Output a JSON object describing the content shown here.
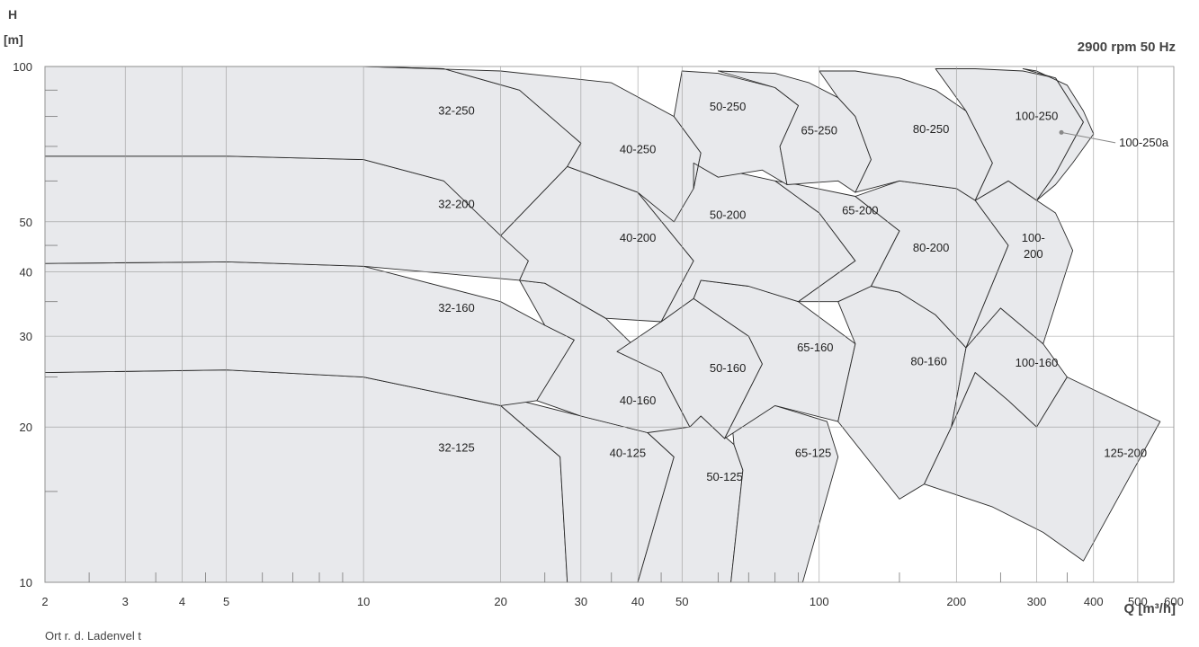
{
  "header": {
    "y_label": "H",
    "y_unit": "[m]",
    "speed": "2900 rpm 50 Hz",
    "x_label": "Q [m³/h]"
  },
  "footnote": "Ort r. d. Ladenvel t",
  "chart_data": {
    "type": "area",
    "x_scale": "log",
    "y_scale": "log",
    "xlim": [
      2,
      600
    ],
    "ylim": [
      10,
      100
    ],
    "xlabel": "Q [m³/h]",
    "ylabel": "H [m]",
    "grid": true,
    "x_ticks": [
      2,
      3,
      4,
      5,
      10,
      20,
      30,
      40,
      50,
      100,
      200,
      300,
      400,
      500,
      600
    ],
    "y_ticks": [
      10,
      20,
      30,
      40,
      50,
      100
    ],
    "fill_color": "#e8e9ec",
    "line_color": "#2a2a2a",
    "grid_color": "#9a9a9a",
    "series": [
      {
        "name": "32-125",
        "label_at": [
          16,
          18.2
        ],
        "polygon": [
          [
            2,
            25.5
          ],
          [
            5,
            25.8
          ],
          [
            10,
            25.0
          ],
          [
            20,
            22.0
          ],
          [
            27,
            17.5
          ],
          [
            28,
            10
          ],
          [
            2,
            10
          ]
        ]
      },
      {
        "name": "40-125",
        "label_at": [
          38,
          17.8
        ],
        "polygon": [
          [
            10,
            25.0
          ],
          [
            20,
            23.0
          ],
          [
            30,
            21.0
          ],
          [
            42,
            19.5
          ],
          [
            48,
            17.5
          ],
          [
            40,
            10
          ],
          [
            28,
            10
          ],
          [
            27,
            17.5
          ],
          [
            20,
            22.0
          ]
        ]
      },
      {
        "name": "50-125",
        "label_at": [
          62,
          16.0
        ],
        "polygon": [
          [
            48,
            17.5
          ],
          [
            42,
            19.5
          ],
          [
            48,
            21.5
          ],
          [
            55,
            21.0
          ],
          [
            65,
            18.5
          ],
          [
            68,
            16.5
          ],
          [
            64,
            10
          ],
          [
            40,
            10
          ]
        ]
      },
      {
        "name": "65-125",
        "label_at": [
          97,
          17.8
        ],
        "polygon": [
          [
            65,
            18.5
          ],
          [
            68,
            16.5
          ],
          [
            64,
            10
          ],
          [
            92,
            10
          ],
          [
            110,
            17.5
          ],
          [
            104,
            20.5
          ],
          [
            80,
            22.0
          ],
          [
            64,
            21.5
          ]
        ]
      },
      {
        "name": "32-160",
        "label_at": [
          16,
          34
        ],
        "polygon": [
          [
            2,
            41.5
          ],
          [
            5,
            41.8
          ],
          [
            10,
            41.0
          ],
          [
            20,
            35.0
          ],
          [
            25,
            31.5
          ],
          [
            29,
            29.5
          ],
          [
            24,
            22.5
          ],
          [
            20,
            22.0
          ],
          [
            10,
            25.0
          ],
          [
            5,
            25.8
          ],
          [
            2,
            25.5
          ]
        ]
      },
      {
        "name": "40-160",
        "label_at": [
          40,
          22.5
        ],
        "polygon": [
          [
            29,
            29.5
          ],
          [
            24,
            22.5
          ],
          [
            30,
            21.0
          ],
          [
            42,
            19.5
          ],
          [
            52,
            20.0
          ],
          [
            45,
            25.5
          ],
          [
            34,
            32.5
          ],
          [
            25,
            38.0
          ],
          [
            22,
            38.5
          ],
          [
            25,
            31.5
          ]
        ]
      },
      {
        "name": "50-160",
        "label_at": [
          63,
          26.0
        ],
        "polygon": [
          [
            45,
            25.5
          ],
          [
            52,
            20.0
          ],
          [
            55,
            21.0
          ],
          [
            62,
            19.0
          ],
          [
            75,
            26.5
          ],
          [
            70,
            30.0
          ],
          [
            53,
            35.5
          ],
          [
            45,
            32.0
          ],
          [
            36,
            28.0
          ]
        ]
      },
      {
        "name": "65-160",
        "label_at": [
          98,
          28.5
        ],
        "polygon": [
          [
            62,
            19.0
          ],
          [
            75,
            26.5
          ],
          [
            70,
            30.0
          ],
          [
            53,
            35.5
          ],
          [
            55,
            38.5
          ],
          [
            70,
            37.5
          ],
          [
            90,
            35.0
          ],
          [
            120,
            29.0
          ],
          [
            110,
            20.5
          ],
          [
            80,
            22.0
          ]
        ]
      },
      {
        "name": "80-160",
        "label_at": [
          174,
          26.8
        ],
        "polygon": [
          [
            120,
            29.0
          ],
          [
            110,
            20.5
          ],
          [
            150,
            14.5
          ],
          [
            170,
            15.5
          ],
          [
            195,
            20.0
          ],
          [
            210,
            28.5
          ],
          [
            180,
            33.0
          ],
          [
            150,
            36.5
          ],
          [
            130,
            37.5
          ],
          [
            110,
            35.0
          ]
        ]
      },
      {
        "name": "100-160",
        "label_at": [
          300,
          26.6
        ],
        "polygon": [
          [
            210,
            28.5
          ],
          [
            195,
            20.0
          ],
          [
            220,
            25.5
          ],
          [
            260,
            22.5
          ],
          [
            300,
            20.0
          ],
          [
            350,
            25.0
          ],
          [
            310,
            29.0
          ],
          [
            250,
            34.0
          ],
          [
            220,
            36.0
          ]
        ]
      },
      {
        "name": "125-200",
        "label_at": [
          470,
          17.8
        ],
        "polygon": [
          [
            195,
            20.0
          ],
          [
            170,
            15.5
          ],
          [
            240,
            14.0
          ],
          [
            310,
            12.5
          ],
          [
            380,
            11.0
          ],
          [
            560,
            20.5
          ],
          [
            350,
            25.0
          ],
          [
            300,
            20.0
          ],
          [
            260,
            22.5
          ],
          [
            220,
            25.5
          ]
        ]
      },
      {
        "name": "32-200",
        "label_at": [
          16,
          54
        ],
        "polygon": [
          [
            2,
            67
          ],
          [
            5,
            67
          ],
          [
            10,
            66
          ],
          [
            15,
            60
          ],
          [
            20,
            50
          ],
          [
            23,
            42
          ],
          [
            22,
            38.5
          ],
          [
            10,
            41.0
          ],
          [
            5,
            41.8
          ],
          [
            2,
            41.5
          ]
        ]
      },
      {
        "name": "40-200",
        "label_at": [
          40,
          46.5
        ],
        "polygon": [
          [
            23,
            42
          ],
          [
            20,
            47
          ],
          [
            28,
            64
          ],
          [
            40,
            57
          ],
          [
            53,
            42
          ],
          [
            45,
            32.0
          ],
          [
            34,
            32.5
          ],
          [
            25,
            38.0
          ],
          [
            22,
            38.5
          ]
        ]
      },
      {
        "name": "50-200",
        "label_at": [
          63,
          51.5
        ],
        "polygon": [
          [
            53,
            42
          ],
          [
            45,
            32.0
          ],
          [
            53,
            35.5
          ],
          [
            55,
            38.5
          ],
          [
            70,
            37.5
          ],
          [
            90,
            35.0
          ],
          [
            120,
            42.0
          ],
          [
            100,
            52.0
          ],
          [
            80,
            60.0
          ],
          [
            53,
            65.0
          ],
          [
            45,
            57.0
          ],
          [
            40,
            57.0
          ]
        ]
      },
      {
        "name": "65-200",
        "label_at": [
          123,
          52.5
        ],
        "polygon": [
          [
            120,
            42.0
          ],
          [
            90,
            35.0
          ],
          [
            110,
            35.0
          ],
          [
            130,
            37.5
          ],
          [
            150,
            48.0
          ],
          [
            120,
            56.0
          ],
          [
            90,
            59.0
          ],
          [
            80,
            60.0
          ],
          [
            100,
            52.0
          ]
        ]
      },
      {
        "name": "80-200",
        "label_at": [
          176,
          44.5
        ],
        "polygon": [
          [
            150,
            48.0
          ],
          [
            130,
            37.5
          ],
          [
            150,
            36.5
          ],
          [
            180,
            33.0
          ],
          [
            210,
            28.5
          ],
          [
            260,
            45.0
          ],
          [
            220,
            55.0
          ],
          [
            200,
            58.0
          ],
          [
            150,
            60.0
          ],
          [
            120,
            56.0
          ]
        ]
      },
      {
        "name": "100-200",
        "label_at": [
          295,
          45.0
        ],
        "polygon": [
          [
            260,
            45.0
          ],
          [
            210,
            28.5
          ],
          [
            250,
            34.0
          ],
          [
            310,
            29.0
          ],
          [
            360,
            44.0
          ],
          [
            330,
            52.0
          ],
          [
            300,
            55.0
          ],
          [
            260,
            60.0
          ],
          [
            220,
            55.0
          ]
        ]
      },
      {
        "name": "32-250",
        "label_at": [
          16,
          82
        ],
        "polygon": [
          [
            2,
            100
          ],
          [
            10,
            100
          ],
          [
            15,
            99
          ],
          [
            22,
            90
          ],
          [
            27,
            77
          ],
          [
            30,
            71
          ],
          [
            28,
            64
          ],
          [
            20,
            47
          ],
          [
            15,
            60
          ],
          [
            10,
            66
          ],
          [
            5,
            67
          ],
          [
            2,
            67
          ]
        ]
      },
      {
        "name": "40-250",
        "label_at": [
          40,
          69
        ],
        "polygon": [
          [
            30,
            71
          ],
          [
            28,
            64
          ],
          [
            40,
            57
          ],
          [
            48,
            50
          ],
          [
            53,
            58
          ],
          [
            55,
            68
          ],
          [
            48,
            80
          ],
          [
            35,
            93
          ],
          [
            20,
            98
          ],
          [
            10,
            100
          ],
          [
            15,
            99
          ],
          [
            22,
            90
          ]
        ]
      },
      {
        "name": "50-250",
        "label_at": [
          63,
          83.5
        ],
        "polygon": [
          [
            55,
            68
          ],
          [
            53,
            58
          ],
          [
            53,
            65
          ],
          [
            60,
            61
          ],
          [
            75,
            63
          ],
          [
            85,
            59
          ],
          [
            82,
            70
          ],
          [
            90,
            84
          ],
          [
            80,
            91
          ],
          [
            60,
            97
          ],
          [
            50,
            98
          ],
          [
            48,
            80
          ]
        ]
      },
      {
        "name": "65-250",
        "label_at": [
          100,
          75
        ],
        "polygon": [
          [
            90,
            84
          ],
          [
            82,
            70
          ],
          [
            85,
            59
          ],
          [
            110,
            60
          ],
          [
            120,
            57
          ],
          [
            130,
            66
          ],
          [
            120,
            80
          ],
          [
            110,
            87
          ],
          [
            95,
            93
          ],
          [
            80,
            97
          ],
          [
            60,
            98
          ],
          [
            80,
            91
          ]
        ]
      },
      {
        "name": "80-250",
        "label_at": [
          176,
          75.5
        ],
        "polygon": [
          [
            130,
            66
          ],
          [
            120,
            57
          ],
          [
            150,
            60
          ],
          [
            200,
            58
          ],
          [
            220,
            55
          ],
          [
            240,
            65
          ],
          [
            210,
            82
          ],
          [
            180,
            90
          ],
          [
            150,
            95
          ],
          [
            120,
            98
          ],
          [
            100,
            98
          ],
          [
            110,
            87
          ],
          [
            120,
            80
          ]
        ]
      },
      {
        "name": "100-250",
        "label_at": [
          300,
          80
        ],
        "polygon": [
          [
            240,
            65
          ],
          [
            220,
            55
          ],
          [
            260,
            60
          ],
          [
            300,
            55
          ],
          [
            330,
            62
          ],
          [
            380,
            78
          ],
          [
            330,
            95
          ],
          [
            280,
            98
          ],
          [
            220,
            99
          ],
          [
            180,
            99
          ],
          [
            210,
            82
          ]
        ]
      },
      {
        "name": "100-250a",
        "label_at": [
          455,
          70
        ],
        "polygon": [
          [
            330,
            62
          ],
          [
            300,
            55
          ],
          [
            330,
            59
          ],
          [
            360,
            65
          ],
          [
            400,
            74
          ],
          [
            380,
            82
          ],
          [
            350,
            92
          ],
          [
            300,
            98
          ],
          [
            280,
            99
          ],
          [
            330,
            95
          ],
          [
            380,
            78
          ]
        ]
      }
    ]
  }
}
